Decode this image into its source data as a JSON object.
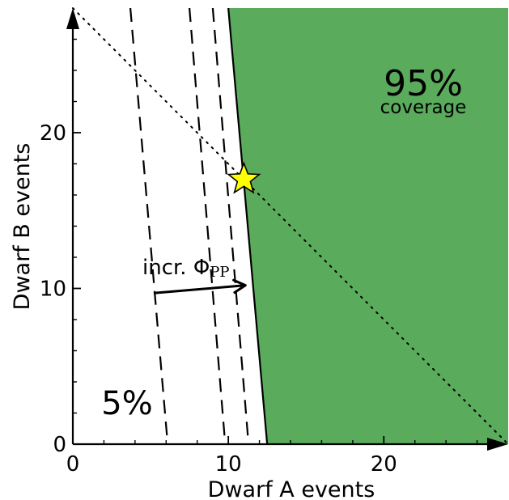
{
  "chart_data": {
    "type": "area",
    "xlabel": "Dwarf A events",
    "ylabel": "Dwarf B events",
    "xlim": [
      0,
      28
    ],
    "ylim": [
      0,
      28
    ],
    "x_ticks": [
      0,
      10,
      20
    ],
    "y_ticks": [
      0,
      10,
      20
    ],
    "x_minor_step": 2,
    "y_minor_step": 2,
    "grid": false,
    "region_95": {
      "label": "95%",
      "sublabel": "coverage",
      "boundary": [
        [
          10.0,
          28
        ],
        [
          12.5,
          0
        ]
      ],
      "color": "#5aab5c"
    },
    "dashed_contours": [
      [
        [
          3.7,
          28
        ],
        [
          6.1,
          0
        ]
      ],
      [
        [
          7.5,
          28
        ],
        [
          9.8,
          0
        ]
      ],
      [
        [
          9.0,
          28
        ],
        [
          11.3,
          0
        ]
      ]
    ],
    "diagonal": [
      [
        0,
        28
      ],
      [
        28,
        0
      ]
    ],
    "star": {
      "x": 11.0,
      "y": 17.0,
      "color": "#ffff00"
    },
    "arrow": {
      "from": [
        5.2,
        9.7
      ],
      "to": [
        11.1,
        10.2
      ]
    },
    "arrow_label": "incr. Φ",
    "arrow_label_sub": "PP",
    "label_5": "5%"
  }
}
